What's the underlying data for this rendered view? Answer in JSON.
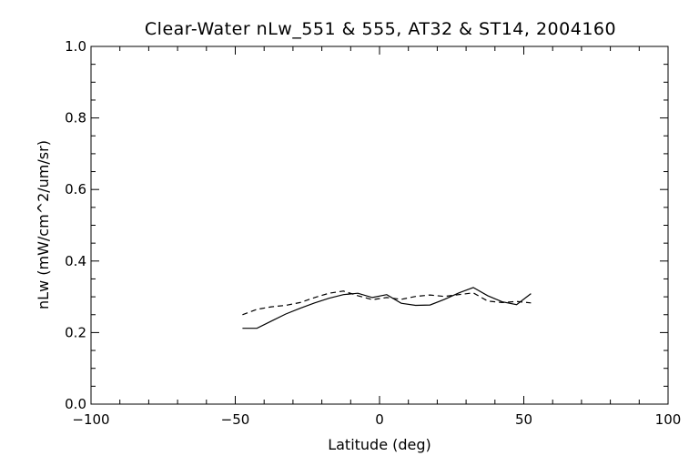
{
  "chart_data": {
    "type": "line",
    "title": "Clear-Water nLw_551 & 555, AT32 & ST14, 2004160",
    "xlabel": "Latitude (deg)",
    "ylabel": "nLw (mW/cm^2/um/sr)",
    "xlim": [
      -100,
      100
    ],
    "ylim": [
      0.0,
      1.0
    ],
    "x_ticks": [
      -100,
      -50,
      0,
      50,
      100
    ],
    "x_tick_labels": [
      "−100",
      "−50",
      "0",
      "50",
      "100"
    ],
    "x_minor_step": 10,
    "y_ticks": [
      0.0,
      0.2,
      0.4,
      0.6,
      0.8,
      1.0
    ],
    "y_tick_labels": [
      "0.0",
      "0.2",
      "0.4",
      "0.6",
      "0.8",
      "1.0"
    ],
    "y_minor_step": 0.05,
    "grid": false,
    "legend": "none",
    "series": [
      {
        "style": "solid",
        "color": "#000000",
        "x": [
          -47.5,
          -42.5,
          -37.5,
          -32.5,
          -27.5,
          -22.5,
          -17.5,
          -12.5,
          -7.5,
          -2.5,
          2.5,
          7.5,
          12.5,
          17.5,
          22.5,
          27.5,
          32.5,
          37.5,
          42.5,
          47.5,
          52.5
        ],
        "y": [
          0.212,
          0.212,
          0.232,
          0.252,
          0.268,
          0.283,
          0.296,
          0.306,
          0.31,
          0.298,
          0.306,
          0.282,
          0.276,
          0.277,
          0.293,
          0.311,
          0.326,
          0.303,
          0.286,
          0.278,
          0.309
        ]
      },
      {
        "style": "dashed",
        "color": "#000000",
        "x": [
          -47.5,
          -42.5,
          -37.5,
          -32.5,
          -27.5,
          -22.5,
          -17.5,
          -12.5,
          -7.5,
          -2.5,
          2.5,
          7.5,
          12.5,
          17.5,
          22.5,
          27.5,
          32.5,
          37.5,
          42.5,
          47.5,
          52.5
        ],
        "y": [
          0.25,
          0.265,
          0.272,
          0.276,
          0.284,
          0.298,
          0.31,
          0.316,
          0.303,
          0.292,
          0.298,
          0.293,
          0.301,
          0.305,
          0.301,
          0.306,
          0.311,
          0.288,
          0.284,
          0.287,
          0.283
        ]
      }
    ]
  }
}
